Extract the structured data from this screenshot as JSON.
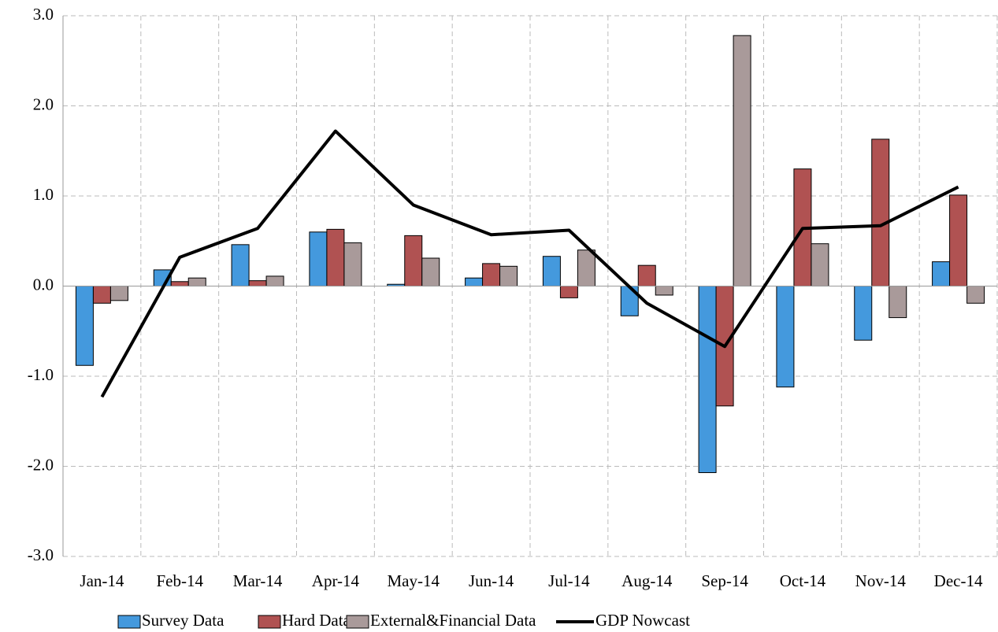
{
  "chart_data": {
    "type": "bar",
    "categories": [
      "Jan-14",
      "Feb-14",
      "Mar-14",
      "Apr-14",
      "May-14",
      "Jun-14",
      "Jul-14",
      "Aug-14",
      "Sep-14",
      "Oct-14",
      "Nov-14",
      "Dec-14"
    ],
    "series": [
      {
        "name": "Survey Data",
        "color": "#4499dd",
        "type": "bar",
        "values": [
          -0.88,
          0.18,
          0.46,
          0.6,
          0.02,
          0.09,
          0.33,
          -0.33,
          -2.07,
          -1.12,
          -0.6,
          0.27
        ]
      },
      {
        "name": "Hard Data",
        "color": "#b05252",
        "type": "bar",
        "values": [
          -0.19,
          0.05,
          0.06,
          0.63,
          0.56,
          0.25,
          -0.13,
          0.23,
          -1.33,
          1.3,
          1.63,
          1.01
        ]
      },
      {
        "name": "External&Financial Data",
        "color": "#a99a9a",
        "type": "bar",
        "values": [
          -0.16,
          0.09,
          0.11,
          0.48,
          0.31,
          0.22,
          0.4,
          -0.1,
          2.78,
          0.47,
          -0.35,
          -0.19
        ]
      },
      {
        "name": "GDP Nowcast",
        "color": "#000000",
        "type": "line",
        "values": [
          -1.23,
          0.32,
          0.64,
          1.72,
          0.9,
          0.57,
          0.62,
          -0.19,
          -0.67,
          0.64,
          0.67,
          1.1
        ]
      }
    ],
    "ylim": [
      -3,
      3
    ],
    "yticks": [
      {
        "value": -3,
        "label": "-3.0"
      },
      {
        "value": -2,
        "label": "-2.0"
      },
      {
        "value": -1,
        "label": "-1.0"
      },
      {
        "value": 0,
        "label": "0.0"
      },
      {
        "value": 1,
        "label": "1.0"
      },
      {
        "value": 2,
        "label": "2.0"
      },
      {
        "value": 3,
        "label": "3.0"
      }
    ],
    "grid": true,
    "legend": "bottom"
  }
}
